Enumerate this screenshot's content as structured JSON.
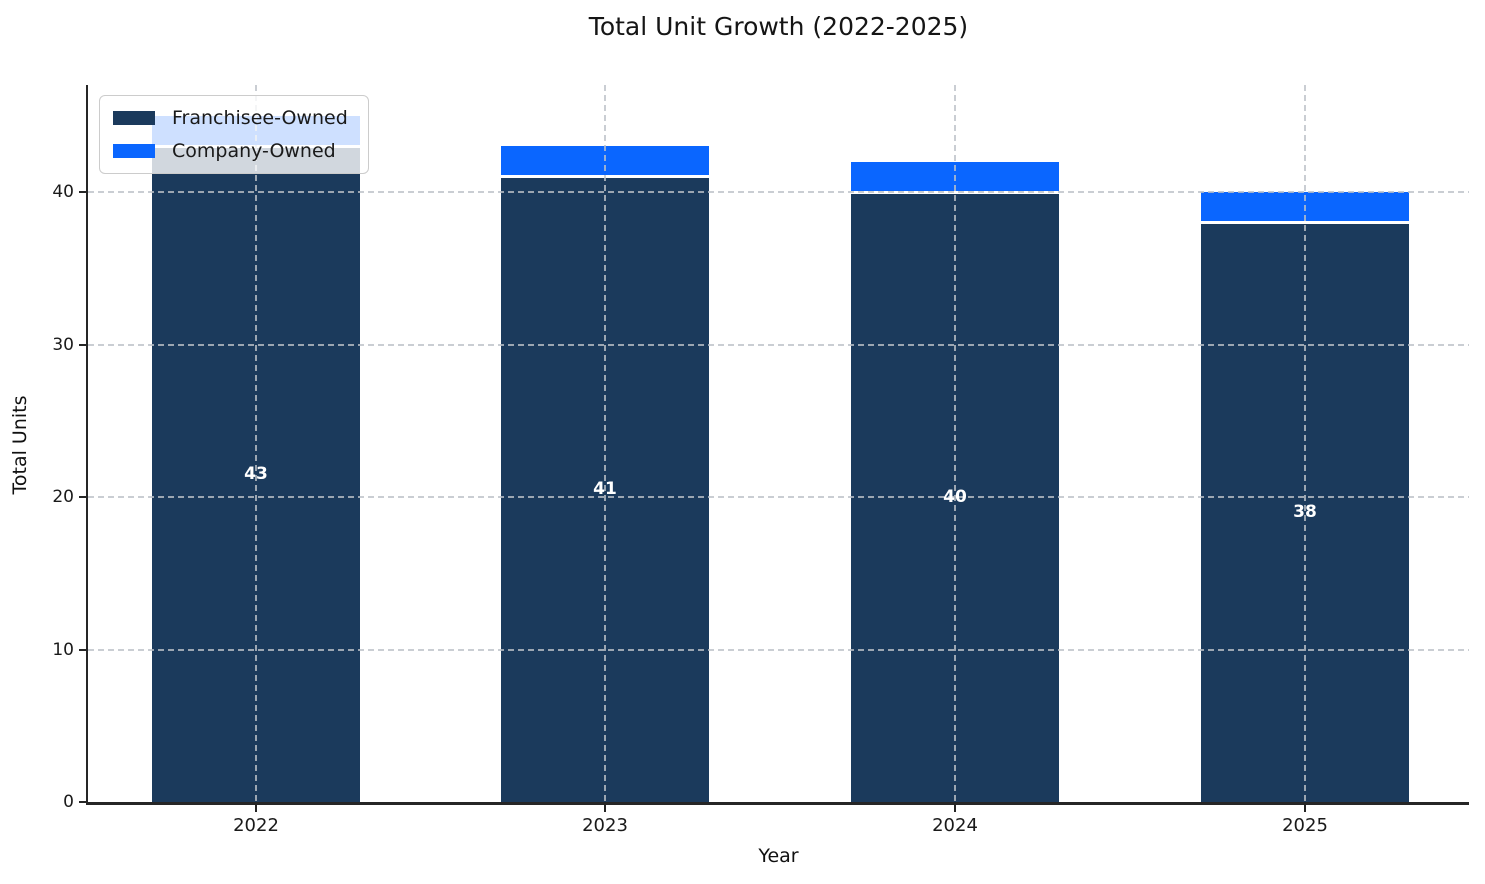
{
  "title": "Total Unit Growth (2022-2025)",
  "chart_data": {
    "type": "bar",
    "stacked": true,
    "title": "Total Unit Growth (2022-2025)",
    "xlabel": "Year",
    "ylabel": "Total Units",
    "categories": [
      "2022",
      "2023",
      "2024",
      "2025"
    ],
    "series": [
      {
        "name": "Franchisee-Owned",
        "color": "#1b3a5c",
        "values": [
          43,
          41,
          40,
          38
        ],
        "bar_labels": [
          "43",
          "41",
          "40",
          "38"
        ]
      },
      {
        "name": "Company-Owned",
        "color": "#0a66ff",
        "values": [
          2,
          2,
          2,
          2
        ],
        "bar_labels": [
          "",
          "",
          "",
          ""
        ]
      }
    ],
    "totals": [
      45,
      43,
      42,
      40
    ],
    "ylim": [
      0,
      47
    ],
    "yticks": [
      0,
      10,
      20,
      30,
      40
    ],
    "grid": true,
    "grid_style": "dashed",
    "legend_position": "upper left",
    "bar_label_color": "#ffffff",
    "axis_color": "#262626"
  }
}
